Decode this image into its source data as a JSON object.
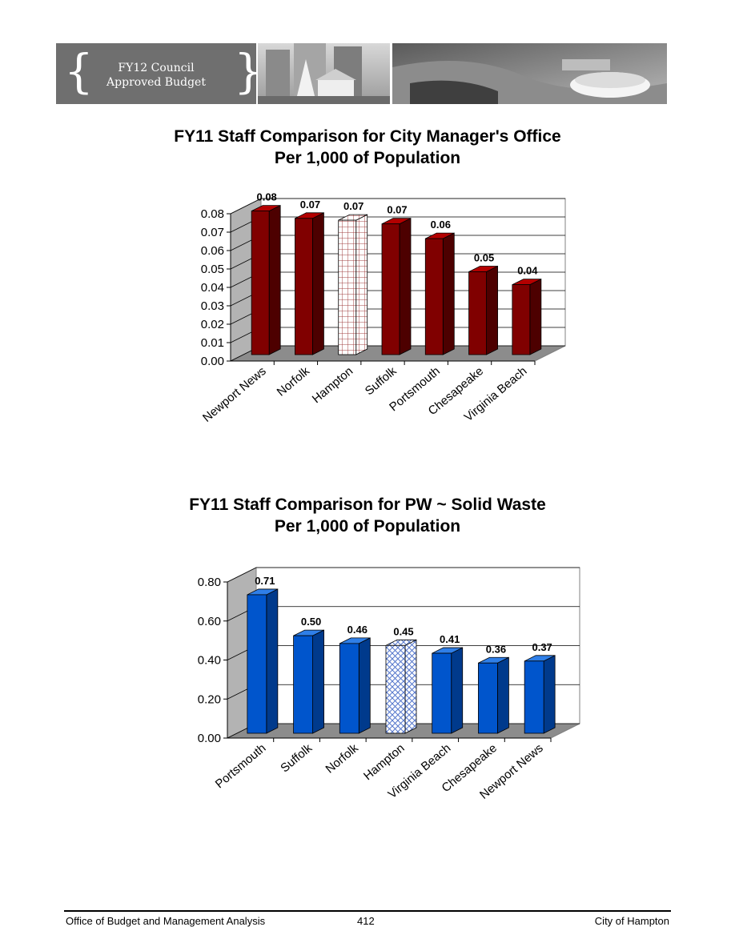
{
  "banner": {
    "title_line1": "FY12  Council",
    "title_line2": "Approved Budget",
    "icon_left": "left-brace-icon",
    "icon_right": "right-brace-icon"
  },
  "chart_data": [
    {
      "type": "bar",
      "title": "FY11 Staff Comparison for City Manager's Office",
      "subtitle": "Per 1,000 of Population",
      "categories": [
        "Newport News",
        "Norfolk",
        "Hampton",
        "Suffolk",
        "Portsmouth",
        "Chesapeake",
        "Virginia Beach"
      ],
      "values": [
        0.078,
        0.074,
        0.073,
        0.071,
        0.063,
        0.045,
        0.038
      ],
      "value_labels": [
        "0.08",
        "0.07",
        "0.07",
        "0.07",
        "0.06",
        "0.05",
        "0.04"
      ],
      "highlight": "Hampton",
      "ylim": [
        0,
        0.08
      ],
      "yticks": [
        "0.00",
        "0.01",
        "0.02",
        "0.03",
        "0.04",
        "0.05",
        "0.06",
        "0.07",
        "0.08"
      ],
      "grid": true,
      "colors": {
        "bar": "#800000",
        "bar_side": "#4d0000",
        "bar_top": "#b30000",
        "highlight_line": "#a04040"
      }
    },
    {
      "type": "bar",
      "title": "FY11 Staff Comparison for PW ~ Solid Waste",
      "subtitle": "Per 1,000 of Population",
      "categories": [
        "Portsmouth",
        "Suffolk",
        "Norfolk",
        "Hampton",
        "Virginia Beach",
        "Chesapeake",
        "Newport News"
      ],
      "values": [
        0.71,
        0.5,
        0.46,
        0.45,
        0.41,
        0.36,
        0.37
      ],
      "value_labels": [
        "0.71",
        "0.50",
        "0.46",
        "0.45",
        "0.41",
        "0.36",
        "0.37"
      ],
      "highlight": "Hampton",
      "ylim": [
        0,
        0.8
      ],
      "yticks": [
        "0.00",
        "0.20",
        "0.40",
        "0.60",
        "0.80"
      ],
      "grid": true,
      "colors": {
        "bar": "#0055cc",
        "bar_side": "#003a8c",
        "bar_top": "#2f7fe8",
        "highlight_line": "#5577cc"
      }
    }
  ],
  "footer": {
    "left": "Office of Budget and Management Analysis",
    "center": "412",
    "right": "City of Hampton"
  }
}
